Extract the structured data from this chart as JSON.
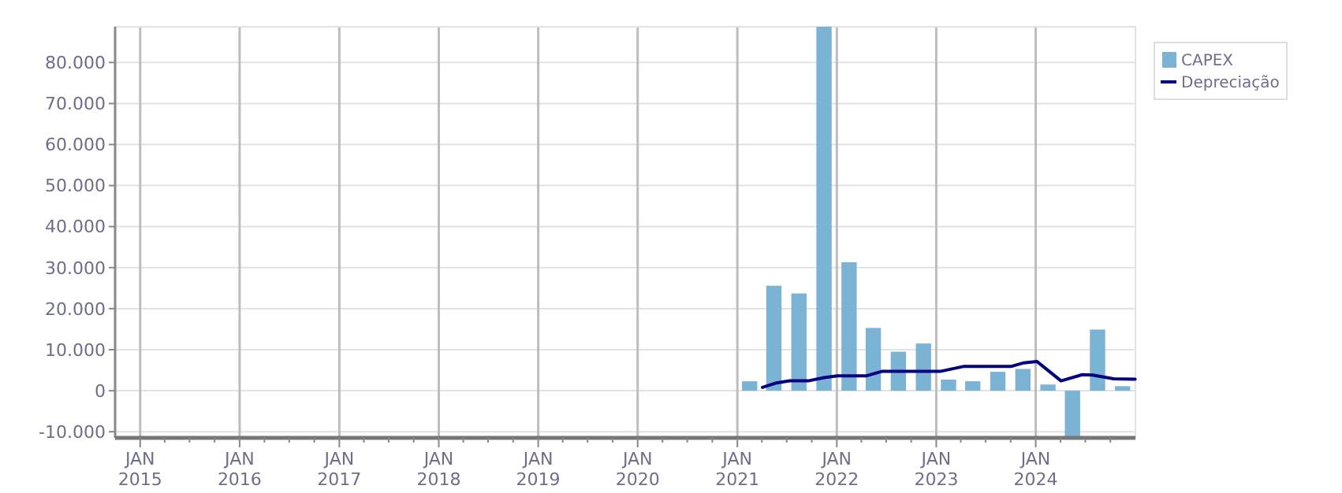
{
  "chart_data": {
    "type": "bar",
    "x": [
      "2021-02-15",
      "2021-05-15",
      "2021-08-15",
      "2021-11-15",
      "2022-02-15",
      "2022-05-15",
      "2022-08-15",
      "2022-11-15",
      "2023-02-15",
      "2023-05-15",
      "2023-08-15",
      "2023-11-15",
      "2024-02-15",
      "2024-05-15",
      "2024-08-15",
      "2024-11-15"
    ],
    "series": [
      {
        "name": "CAPEX",
        "color": "#7ab3d4",
        "values": [
          2300,
          25600,
          23700,
          88700,
          31300,
          15300,
          9500,
          11500,
          2700,
          2300,
          4600,
          5300,
          1500,
          -11500,
          14900,
          1100
        ]
      },
      {
        "name": "Depreciação",
        "type": "line",
        "color": "#000080",
        "x": [
          "2021-04-03",
          "2021-05-25",
          "2021-07-12",
          "2021-09-18",
          "2021-11-15",
          "2022-01-03",
          "2022-04-18",
          "2022-06-15",
          "2023-01-15",
          "2023-04-10",
          "2023-10-02",
          "2023-11-19",
          "2024-01-06",
          "2024-04-03",
          "2024-06-20",
          "2024-07-28",
          "2024-10-13",
          "2024-12-31"
        ],
        "values": [
          800,
          1900,
          2400,
          2400,
          3200,
          3600,
          3600,
          4700,
          4700,
          5900,
          5900,
          6800,
          7100,
          2400,
          3900,
          3800,
          2900,
          2800
        ]
      }
    ],
    "xlim": [
      "2014-10-01",
      "2025-01-01"
    ],
    "xticks": [
      {
        "value": "2015-01-01",
        "label": "JAN\n2015"
      },
      {
        "value": "2015-04-01",
        "label": null
      },
      {
        "value": "2015-07-01",
        "label": null
      },
      {
        "value": "2015-10-01",
        "label": null
      },
      {
        "value": "2016-01-01",
        "label": "JAN\n2016"
      },
      {
        "value": "2016-04-01",
        "label": null
      },
      {
        "value": "2016-07-01",
        "label": null
      },
      {
        "value": "2016-10-01",
        "label": null
      },
      {
        "value": "2017-01-01",
        "label": "JAN\n2017"
      },
      {
        "value": "2017-04-01",
        "label": null
      },
      {
        "value": "2017-07-01",
        "label": null
      },
      {
        "value": "2017-10-01",
        "label": null
      },
      {
        "value": "2018-01-01",
        "label": "JAN\n2018"
      },
      {
        "value": "2018-04-01",
        "label": null
      },
      {
        "value": "2018-07-01",
        "label": null
      },
      {
        "value": "2018-10-01",
        "label": null
      },
      {
        "value": "2019-01-01",
        "label": "JAN\n2019"
      },
      {
        "value": "2019-04-01",
        "label": null
      },
      {
        "value": "2019-07-01",
        "label": null
      },
      {
        "value": "2019-10-01",
        "label": null
      },
      {
        "value": "2020-01-01",
        "label": "JAN\n2020"
      },
      {
        "value": "2020-04-01",
        "label": null
      },
      {
        "value": "2020-07-01",
        "label": null
      },
      {
        "value": "2020-10-01",
        "label": null
      },
      {
        "value": "2021-01-01",
        "label": "JAN\n2021"
      },
      {
        "value": "2021-04-01",
        "label": null
      },
      {
        "value": "2021-07-01",
        "label": null
      },
      {
        "value": "2021-10-01",
        "label": null
      },
      {
        "value": "2022-01-01",
        "label": "JAN\n2022"
      },
      {
        "value": "2022-04-01",
        "label": null
      },
      {
        "value": "2022-07-01",
        "label": null
      },
      {
        "value": "2022-10-01",
        "label": null
      },
      {
        "value": "2023-01-01",
        "label": "JAN\n2023"
      },
      {
        "value": "2023-04-01",
        "label": null
      },
      {
        "value": "2023-07-01",
        "label": null
      },
      {
        "value": "2023-10-01",
        "label": null
      },
      {
        "value": "2024-01-01",
        "label": "JAN\n2024"
      },
      {
        "value": "2024-04-01",
        "label": null
      },
      {
        "value": "2024-07-01",
        "label": null
      },
      {
        "value": "2024-10-01",
        "label": null
      }
    ],
    "ylim": [
      -11500,
      88700
    ],
    "yticks": [
      {
        "value": -10000,
        "label": "-10.000"
      },
      0,
      {
        "value": 10000,
        "label": "10.000"
      },
      {
        "value": 20000,
        "label": "20.000"
      },
      {
        "value": 30000,
        "label": "30.000"
      },
      {
        "value": 40000,
        "label": "40.000"
      },
      {
        "value": 50000,
        "label": "50.000"
      },
      {
        "value": 60000,
        "label": "60.000"
      },
      {
        "value": 70000,
        "label": "70.000"
      },
      {
        "value": 80000,
        "label": "80.000"
      }
    ],
    "grid": true,
    "legend": "top right",
    "marker": "none",
    "line_style": "solid"
  }
}
